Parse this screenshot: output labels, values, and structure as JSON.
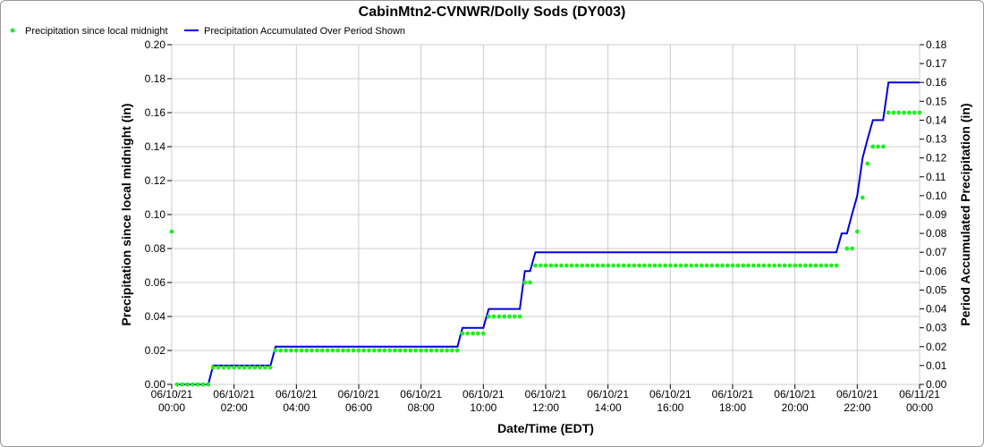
{
  "chart_data": {
    "type": "line",
    "title": "CabinMtn2-CVNWR/Dolly Sods (DY003)",
    "xlabel": "Date/Time (EDT)",
    "ylabel_left": "Precipitation since local midnight (in)",
    "ylabel_right": "Period Accumulated Precipitation (in)",
    "xlim": [
      "06/10/21 00:00",
      "06/11/21 00:00"
    ],
    "ylim_left": [
      0,
      0.2
    ],
    "ylim_right": [
      0,
      0.18
    ],
    "grid": true,
    "legend_position": "top-left",
    "x_ticks": [
      {
        "date": "06/10/21",
        "time": "00:00",
        "hour": 0
      },
      {
        "date": "06/10/21",
        "time": "02:00",
        "hour": 2
      },
      {
        "date": "06/10/21",
        "time": "04:00",
        "hour": 4
      },
      {
        "date": "06/10/21",
        "time": "06:00",
        "hour": 6
      },
      {
        "date": "06/10/21",
        "time": "08:00",
        "hour": 8
      },
      {
        "date": "06/10/21",
        "time": "10:00",
        "hour": 10
      },
      {
        "date": "06/10/21",
        "time": "12:00",
        "hour": 12
      },
      {
        "date": "06/10/21",
        "time": "14:00",
        "hour": 14
      },
      {
        "date": "06/10/21",
        "time": "16:00",
        "hour": 16
      },
      {
        "date": "06/10/21",
        "time": "18:00",
        "hour": 18
      },
      {
        "date": "06/10/21",
        "time": "20:00",
        "hour": 20
      },
      {
        "date": "06/10/21",
        "time": "22:00",
        "hour": 22
      },
      {
        "date": "06/11/21",
        "time": "00:00",
        "hour": 24
      }
    ],
    "y_left_ticks": [
      "0.00",
      "0.02",
      "0.04",
      "0.06",
      "0.08",
      "0.10",
      "0.12",
      "0.14",
      "0.16",
      "0.18",
      "0.20"
    ],
    "y_right_ticks": [
      "0.00",
      "0.01",
      "0.02",
      "0.03",
      "0.04",
      "0.05",
      "0.06",
      "0.07",
      "0.08",
      "0.09",
      "0.10",
      "0.11",
      "0.12",
      "0.13",
      "0.14",
      "0.15",
      "0.16",
      "0.17",
      "0.18"
    ],
    "series": [
      {
        "name": "Precipitation since local midnight",
        "style": "dots",
        "color": "#22ee22",
        "axis": "left",
        "segments": [
          {
            "from_hour": 0,
            "to_hour": 0,
            "value": 0.09
          },
          {
            "from_hour": 0.17,
            "to_hour": 1.17,
            "value": 0.0
          },
          {
            "from_hour": 1.33,
            "to_hour": 3.17,
            "value": 0.01
          },
          {
            "from_hour": 3.33,
            "to_hour": 9.17,
            "value": 0.02
          },
          {
            "from_hour": 9.33,
            "to_hour": 10.0,
            "value": 0.03
          },
          {
            "from_hour": 10.17,
            "to_hour": 11.17,
            "value": 0.04
          },
          {
            "from_hour": 11.33,
            "to_hour": 11.5,
            "value": 0.06
          },
          {
            "from_hour": 11.67,
            "to_hour": 21.33,
            "value": 0.07
          },
          {
            "from_hour": 21.67,
            "to_hour": 21.83,
            "value": 0.08
          },
          {
            "from_hour": 22.0,
            "to_hour": 22.0,
            "value": 0.09
          },
          {
            "from_hour": 22.17,
            "to_hour": 22.17,
            "value": 0.11
          },
          {
            "from_hour": 22.33,
            "to_hour": 22.33,
            "value": 0.13
          },
          {
            "from_hour": 22.5,
            "to_hour": 22.83,
            "value": 0.14
          },
          {
            "from_hour": 23.0,
            "to_hour": 24.0,
            "value": 0.16
          }
        ]
      },
      {
        "name": "Precipitation Accumulated Over Period Shown",
        "style": "line",
        "color": "#0000dd",
        "axis": "right",
        "x_hours": [
          0.17,
          1.17,
          1.33,
          3.17,
          3.33,
          9.17,
          9.33,
          10.0,
          10.17,
          11.17,
          11.33,
          11.5,
          11.67,
          21.33,
          21.5,
          21.67,
          21.83,
          22.0,
          22.17,
          22.33,
          22.5,
          22.83,
          23.0,
          24.0
        ],
        "y": [
          0.0,
          0.0,
          0.01,
          0.01,
          0.02,
          0.02,
          0.03,
          0.03,
          0.04,
          0.04,
          0.06,
          0.06,
          0.07,
          0.07,
          0.08,
          0.08,
          0.09,
          0.1,
          0.12,
          0.13,
          0.14,
          0.14,
          0.16,
          0.16
        ]
      }
    ]
  }
}
